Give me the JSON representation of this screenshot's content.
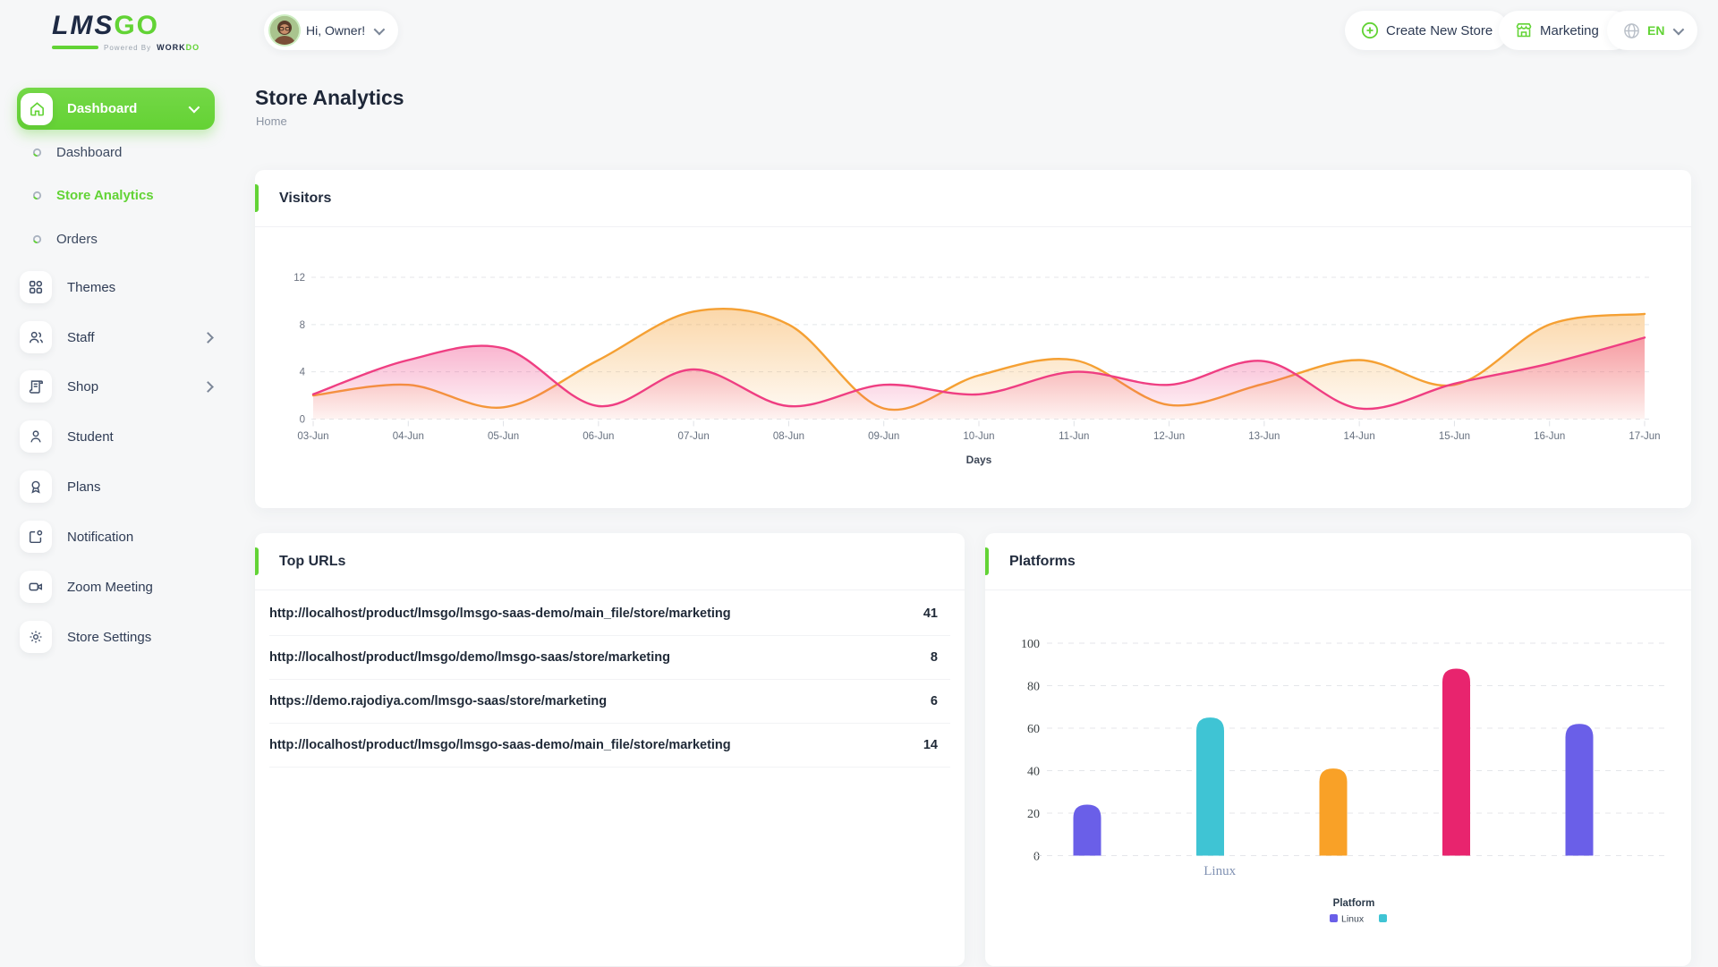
{
  "brand": {
    "lms": "LMS",
    "go": "GO",
    "powered_by": "Powered By",
    "workdo_1": "WORK",
    "workdo_2": "DO"
  },
  "header": {
    "greeting": "Hi, Owner!",
    "create_store_label": "Create New Store",
    "store_selector_label": "Marketing",
    "language_label": "EN"
  },
  "sidebar": {
    "group_label": "Dashboard",
    "items": [
      {
        "label": "Dashboard",
        "type": "sub"
      },
      {
        "label": "Store Analytics",
        "type": "sub",
        "active": true
      },
      {
        "label": "Orders",
        "type": "sub"
      },
      {
        "label": "Themes"
      },
      {
        "label": "Staff",
        "chevron": true
      },
      {
        "label": "Shop",
        "chevron": true
      },
      {
        "label": "Student"
      },
      {
        "label": "Plans"
      },
      {
        "label": "Notification"
      },
      {
        "label": "Zoom Meeting"
      },
      {
        "label": "Store Settings"
      }
    ]
  },
  "page": {
    "title": "Store Analytics",
    "breadcrumb": "Home"
  },
  "cards": {
    "visitors": {
      "title": "Visitors"
    },
    "top_urls": {
      "title": "Top URLs",
      "rows": [
        {
          "url": "http://localhost/product/lmsgo/lmsgo-saas-demo/main_file/store/marketing",
          "count": "41"
        },
        {
          "url": "http://localhost/product/lmsgo/demo/lmsgo-saas/store/marketing",
          "count": "8"
        },
        {
          "url": "https://demo.rajodiya.com/lmsgo-saas/store/marketing",
          "count": "6"
        },
        {
          "url": "http://localhost/product/lmsgo/lmsgo-saas-demo/main_file/store/marketing",
          "count": "14"
        }
      ]
    },
    "platforms": {
      "title": "Platforms"
    }
  },
  "colors": {
    "accent_green": "#62d335",
    "navy": "#1e2a44",
    "visitors_orange": "#F5A033",
    "visitors_pink": "#EF3E82",
    "bar_purple": "#6A5FE8",
    "bar_teal": "#3FC4D4",
    "bar_orange": "#F9A127",
    "bar_pink": "#E8246E"
  },
  "chart_data": [
    {
      "type": "area",
      "title": "Visitors",
      "xlabel": "Days",
      "x": [
        "03-Jun",
        "04-Jun",
        "05-Jun",
        "06-Jun",
        "07-Jun",
        "08-Jun",
        "09-Jun",
        "10-Jun",
        "11-Jun",
        "12-Jun",
        "13-Jun",
        "14-Jun",
        "15-Jun",
        "16-Jun",
        "17-Jun"
      ],
      "ylim": [
        0,
        12
      ],
      "yticks": [
        0,
        4,
        8,
        12
      ],
      "grid": true,
      "legend_position": "none",
      "series": [
        {
          "name": "series-1-orange",
          "color": "#F5A033",
          "values": [
            2,
            2.9,
            1,
            5,
            9.1,
            8,
            0.9,
            3.7,
            5,
            1.2,
            3,
            5,
            2.9,
            8,
            8.9
          ]
        },
        {
          "name": "series-2-pink",
          "color": "#EF3E82",
          "values": [
            2.1,
            5,
            6,
            1.1,
            4.2,
            1.1,
            2.9,
            2.1,
            4,
            2.9,
            4.9,
            0.9,
            3,
            4.7,
            6.9
          ]
        }
      ]
    },
    {
      "type": "bar",
      "title": "Platforms",
      "categories": [
        "Linux"
      ],
      "category_label_x_fraction": 0.28,
      "ylim": [
        0,
        100
      ],
      "yticks": [
        0,
        20,
        40,
        60,
        80,
        100
      ],
      "grid": true,
      "legend_title": "Platform",
      "legend_position": "bottom",
      "legend": [
        {
          "label": "Linux",
          "color": "#6A5FE8"
        },
        {
          "label": "",
          "color": "#3FC4D4"
        }
      ],
      "bars": [
        {
          "color": "#6A5FE8",
          "value": 24
        },
        {
          "color": "#3FC4D4",
          "value": 65
        },
        {
          "color": "#F9A127",
          "value": 41
        },
        {
          "color": "#E8246E",
          "value": 88
        },
        {
          "color": "#6A5FE8",
          "value": 62
        }
      ]
    }
  ]
}
